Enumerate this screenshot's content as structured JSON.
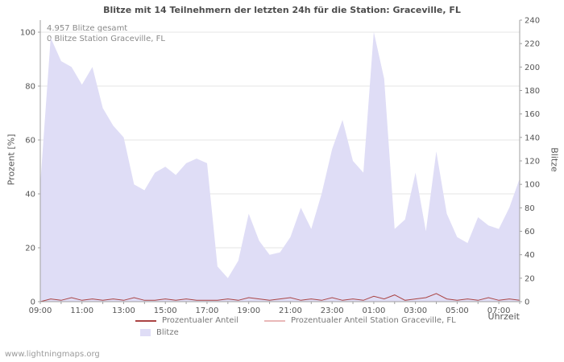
{
  "title": "Blitze mit 14 Teilnehmern der letzten 24h für die Station: Graceville, FL",
  "annotations": {
    "total": "4.957 Blitze gesamt",
    "station": "0 Blitze Station Graceville, FL"
  },
  "axes": {
    "left_label": "Prozent  [%]",
    "right_label": "Blitze",
    "x_label": "Uhrzeit",
    "left_ticks": [
      0,
      20,
      40,
      60,
      80,
      100
    ],
    "right_ticks": [
      0,
      20,
      40,
      60,
      80,
      100,
      120,
      140,
      160,
      180,
      200,
      220,
      240
    ]
  },
  "legend": [
    {
      "label": "Prozentualer Anteil",
      "color": "#aa4444",
      "type": "line"
    },
    {
      "label": "Prozentualer Anteil Station Graceville, FL",
      "color": "#e9b8b8",
      "type": "line"
    },
    {
      "label": "Blitze",
      "color": "#dfddf6",
      "type": "area"
    }
  ],
  "colors": {
    "percent": "#aa4444",
    "station": "#e9b8b8",
    "area": "#dfddf6",
    "grid": "#e6e6e6",
    "axis": "#a0a0a0"
  },
  "watermark": "www.lightningmaps.org",
  "chart_data": {
    "type": "area",
    "title": "Blitze mit 14 Teilnehmern der letzten 24h für die Station: Graceville, FL",
    "x_unit": "time of day, half-hour steps from 09:00 to 08:00",
    "x_ticks": [
      "09:00",
      "11:00",
      "13:00",
      "15:00",
      "17:00",
      "19:00",
      "21:00",
      "23:00",
      "01:00",
      "03:00",
      "05:00",
      "07:00"
    ],
    "x_tick_hours": [
      0,
      2,
      4,
      6,
      8,
      10,
      12,
      14,
      16,
      18,
      20,
      22
    ],
    "left_ylim": [
      0,
      100
    ],
    "right_ylim": [
      0,
      240
    ],
    "grid": true,
    "legend_position": "bottom",
    "series": [
      {
        "name": "Blitze",
        "axis": "right",
        "style": "area",
        "values": [
          100,
          225,
          205,
          200,
          185,
          200,
          165,
          150,
          140,
          100,
          95,
          110,
          115,
          108,
          118,
          122,
          118,
          30,
          20,
          35,
          75,
          52,
          40,
          42,
          55,
          80,
          62,
          92,
          130,
          155,
          120,
          110,
          230,
          190,
          62,
          70,
          110,
          60,
          128,
          75,
          55,
          50,
          72,
          65,
          62,
          80,
          105
        ]
      },
      {
        "name": "Prozentualer Anteil",
        "axis": "left",
        "style": "line",
        "values": [
          0,
          1,
          0.5,
          1.5,
          0.5,
          1,
          0.5,
          1,
          0.5,
          1.5,
          0.5,
          0.5,
          1,
          0.5,
          1,
          0.5,
          0.5,
          0.5,
          1,
          0.5,
          1.5,
          1,
          0.5,
          1,
          1.5,
          0.5,
          1,
          0.5,
          1.5,
          0.5,
          1,
          0.5,
          2,
          1,
          2.5,
          0.5,
          1,
          1.5,
          3,
          1,
          0.5,
          1,
          0.5,
          1.5,
          0.5,
          1,
          0.5
        ]
      },
      {
        "name": "Prozentualer Anteil Station Graceville, FL",
        "axis": "left",
        "style": "line",
        "values": [
          0,
          0,
          0,
          0,
          0,
          0,
          0,
          0,
          0,
          0,
          0,
          0,
          0,
          0,
          0,
          0,
          0,
          0,
          0,
          0,
          0,
          0,
          0,
          0,
          0,
          0,
          0,
          0,
          0,
          0,
          0,
          0,
          0,
          0,
          0,
          0,
          0,
          0,
          0,
          0,
          0,
          0,
          0,
          0,
          0,
          0,
          0
        ]
      }
    ]
  }
}
